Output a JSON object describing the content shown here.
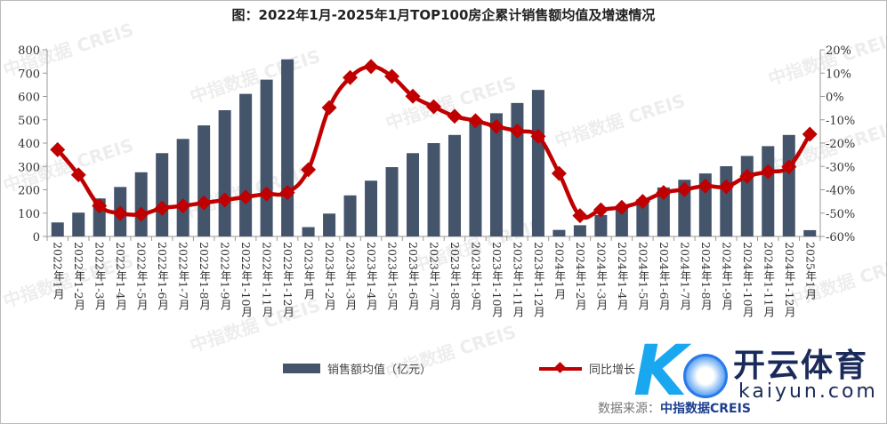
{
  "chart_data": {
    "type": "bar+line",
    "title": "图：2022年1月-2025年1月TOP100房企累计销售额均值及增速情况",
    "categories": [
      "2022年1月",
      "2022年1-2月",
      "2022年1-3月",
      "2022年1-4月",
      "2022年1-5月",
      "2022年1-6月",
      "2022年1-7月",
      "2022年1-8月",
      "2022年1-9月",
      "2022年1-10月",
      "2022年1-11月",
      "2022年1-12月",
      "2023年1月",
      "2023年1-2月",
      "2023年1-3月",
      "2023年1-4月",
      "2023年1-5月",
      "2023年1-6月",
      "2023年1-7月",
      "2023年1-8月",
      "2023年1-9月",
      "2023年1-10月",
      "2023年1-11月",
      "2023年1-12月",
      "2024年1月",
      "2024年1-2月",
      "2024年1-3月",
      "2024年1-4月",
      "2024年1-5月",
      "2024年1-6月",
      "2024年1-7月",
      "2024年1-8月",
      "2024年1-9月",
      "2024年1-10月",
      "2024年1-11月",
      "2024年1-12月",
      "2025年1月"
    ],
    "series": [
      {
        "name": "销售额均值（亿元）",
        "type": "bar",
        "axis": "left",
        "color": "#44546a",
        "values": [
          60,
          102,
          163,
          212,
          275,
          357,
          418,
          476,
          541,
          611,
          672,
          759,
          40,
          98,
          176,
          239,
          297,
          357,
          400,
          435,
          492,
          528,
          572,
          628,
          28,
          48,
          92,
          120,
          160,
          210,
          243,
          270,
          301,
          345,
          387,
          435,
          27
        ]
      },
      {
        "name": "同比增长",
        "type": "line",
        "axis": "right",
        "color": "#c00000",
        "values": [
          -22.8,
          -33.6,
          -46.9,
          -50.1,
          -50.5,
          -47.9,
          -46.9,
          -45.6,
          -44.4,
          -43.1,
          -41.8,
          -41.2,
          -31.4,
          -4.8,
          8.1,
          12.8,
          8.6,
          0.1,
          -4.4,
          -8.5,
          -10.4,
          -12.9,
          -14.8,
          -17.1,
          -33.0,
          -51.1,
          -48.6,
          -47.5,
          -45.0,
          -41.2,
          -39.9,
          -38.4,
          -38.7,
          -34.2,
          -32.3,
          -30.2,
          -16.2
        ]
      }
    ],
    "y_left": {
      "range": [
        0,
        800
      ],
      "ticks": [
        "0",
        "100",
        "200",
        "300",
        "400",
        "500",
        "600",
        "700",
        "800"
      ]
    },
    "y_right": {
      "range": [
        -60,
        20
      ],
      "ticks": [
        "-60%",
        "-50%",
        "-40%",
        "-30%",
        "-20%",
        "-10%",
        "0%",
        "10%",
        "20%"
      ]
    },
    "grid": false,
    "legend_position": "bottom"
  },
  "source": {
    "label": "数据来源：",
    "name": "中指数据CREIS"
  },
  "watermark": "中指数据 CREIS",
  "logo": {
    "cn": "开云体育",
    "en": "kaiyun.com"
  }
}
